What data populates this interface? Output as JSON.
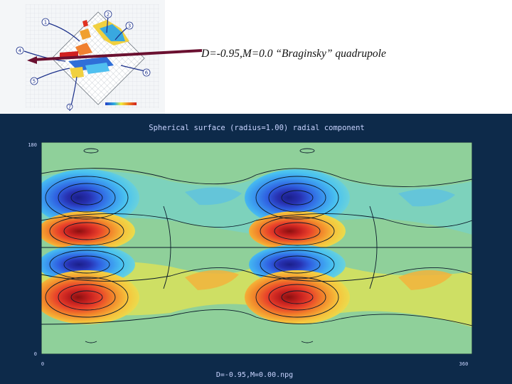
{
  "slide": {
    "caption": "D=-0.95,M=0.0 “Braginsky” quadrupole"
  },
  "diagram": {
    "markers": [
      "1",
      "2",
      "3",
      "4",
      "5",
      "6",
      "7"
    ]
  },
  "plot": {
    "title": "Spherical surface (radius=1.00) radial component",
    "y_top_tick": "180",
    "y_bottom_tick": "0",
    "x_left_tick": "0",
    "x_right_tick": "360",
    "filename": "D=-0.95,M=0.00.npg",
    "colors": {
      "background": "#0d2a4a",
      "field": "#8fd09a",
      "blue": "#1d4fd0",
      "red": "#d6322b"
    }
  }
}
